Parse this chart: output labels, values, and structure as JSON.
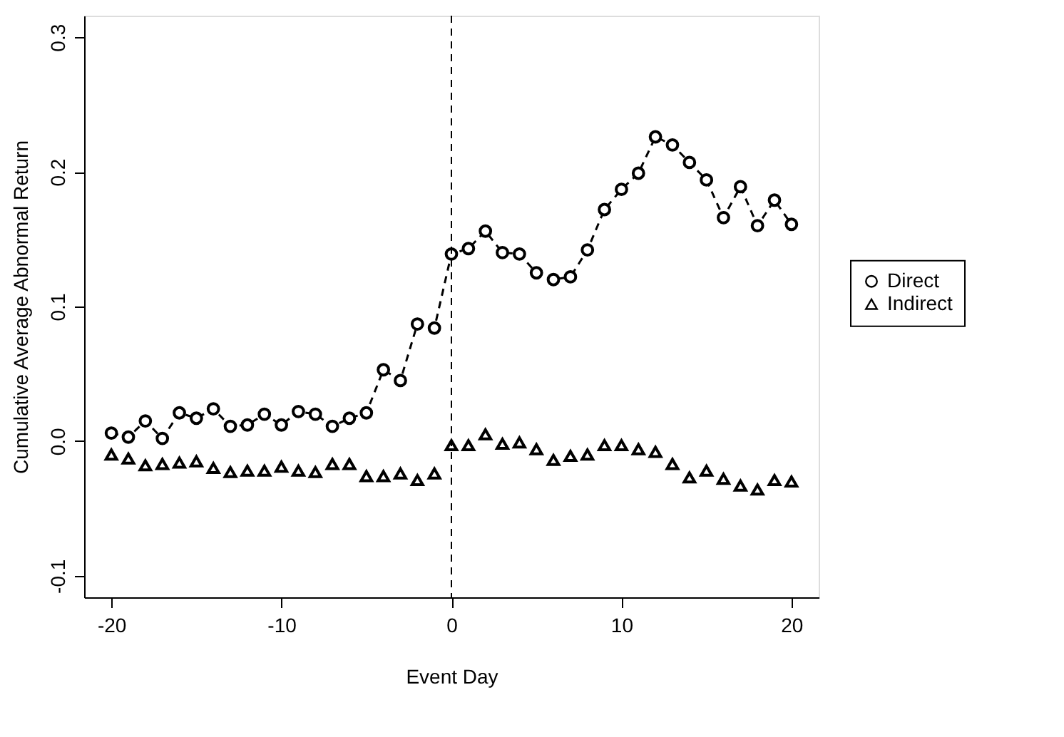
{
  "chart_data": {
    "type": "scatter",
    "xlabel": "Event Day",
    "ylabel": "Cumulative Average Abnormal Return",
    "x": [
      -20,
      -19,
      -18,
      -17,
      -16,
      -15,
      -14,
      -13,
      -12,
      -11,
      -10,
      -9,
      -8,
      -7,
      -6,
      -5,
      -4,
      -3,
      -2,
      -1,
      0,
      1,
      2,
      3,
      4,
      5,
      6,
      7,
      8,
      9,
      10,
      11,
      12,
      13,
      14,
      15,
      16,
      17,
      18,
      19,
      20
    ],
    "series": [
      {
        "name": "Direct",
        "type": "line",
        "marker": "circle",
        "line_style": "dashed",
        "color": "#000000",
        "values": [
          0.006,
          0.003,
          0.015,
          0.002,
          0.021,
          0.017,
          0.024,
          0.011,
          0.012,
          0.02,
          0.012,
          0.022,
          0.02,
          0.011,
          0.017,
          0.021,
          0.053,
          0.045,
          0.087,
          0.084,
          0.139,
          0.143,
          0.156,
          0.14,
          0.139,
          0.125,
          0.12,
          0.122,
          0.142,
          0.172,
          0.187,
          0.199,
          0.226,
          0.22,
          0.207,
          0.194,
          0.166,
          0.189,
          0.16,
          0.179,
          0.161
        ]
      },
      {
        "name": "Indirect",
        "marker": "triangle",
        "color": "#000000",
        "values": [
          -0.01,
          -0.013,
          -0.018,
          -0.017,
          -0.016,
          -0.015,
          -0.02,
          -0.023,
          -0.022,
          -0.022,
          -0.019,
          -0.022,
          -0.023,
          -0.017,
          -0.017,
          -0.026,
          -0.026,
          -0.024,
          -0.029,
          -0.024,
          -0.003,
          -0.003,
          0.005,
          -0.002,
          -0.001,
          -0.006,
          -0.014,
          -0.011,
          -0.01,
          -0.003,
          -0.003,
          -0.006,
          -0.008,
          -0.017,
          -0.027,
          -0.022,
          -0.028,
          -0.033,
          -0.036,
          -0.029,
          -0.03
        ]
      }
    ],
    "xlim": [
      -21.6,
      21.6
    ],
    "ylim": [
      -0.116,
      0.316
    ],
    "xticks": [
      -20,
      -10,
      0,
      10,
      20
    ],
    "yticks": [
      -0.1,
      {
        "value": 0,
        "label": "0.0"
      },
      0.1,
      0.2,
      0.3
    ],
    "ref_lines": [
      {
        "axis": "x",
        "value": 0,
        "line_style": "dashed",
        "color": "#000000"
      }
    ],
    "legend": "right",
    "grid": false
  }
}
